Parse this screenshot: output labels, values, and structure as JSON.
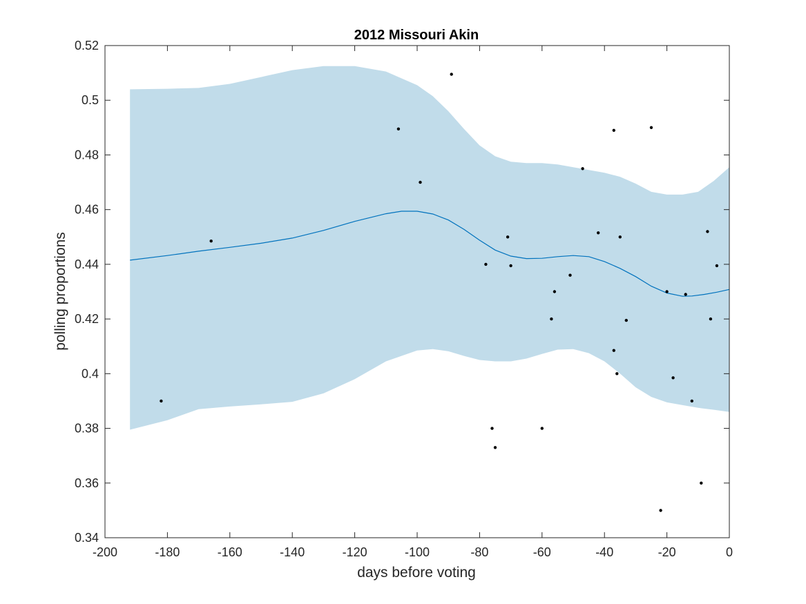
{
  "chart_data": {
    "type": "scatter",
    "title": "2012 Missouri Akin",
    "xlabel": "days before voting",
    "ylabel": "polling proportions",
    "xlim": [
      -200,
      0
    ],
    "ylim": [
      0.34,
      0.52
    ],
    "xticks": [
      -200,
      -180,
      -160,
      -140,
      -120,
      -100,
      -80,
      -60,
      -40,
      -20,
      0
    ],
    "yticks": [
      0.34,
      0.36,
      0.38,
      0.4,
      0.42,
      0.44,
      0.46,
      0.48,
      0.5,
      0.52
    ],
    "ytick_labels": [
      "0.34",
      "0.36",
      "0.38",
      "0.4",
      "0.42",
      "0.44",
      "0.46",
      "0.48",
      "0.5",
      "0.52"
    ],
    "grid": false,
    "colors": {
      "band": "#c1dcea",
      "trend": "#0072bd",
      "points": "#000000",
      "axes": "#262626"
    },
    "band_upper": {
      "x": [
        -192,
        -180,
        -170,
        -160,
        -150,
        -140,
        -130,
        -120,
        -110,
        -100,
        -95,
        -90,
        -85,
        -80,
        -75,
        -70,
        -65,
        -60,
        -55,
        -50,
        -45,
        -40,
        -35,
        -30,
        -25,
        -20,
        -15,
        -10,
        -5,
        0
      ],
      "y": [
        0.504,
        0.5042,
        0.5045,
        0.506,
        0.5085,
        0.511,
        0.5125,
        0.5125,
        0.5105,
        0.5055,
        0.5015,
        0.496,
        0.4895,
        0.4835,
        0.4795,
        0.4775,
        0.477,
        0.477,
        0.4765,
        0.4755,
        0.4745,
        0.4735,
        0.472,
        0.4695,
        0.4665,
        0.4655,
        0.4655,
        0.4665,
        0.4705,
        0.4755
      ]
    },
    "band_lower": {
      "x": [
        -192,
        -180,
        -170,
        -160,
        -150,
        -140,
        -130,
        -120,
        -110,
        -100,
        -95,
        -90,
        -85,
        -80,
        -75,
        -70,
        -65,
        -60,
        -55,
        -50,
        -45,
        -40,
        -35,
        -30,
        -25,
        -20,
        -15,
        -10,
        -5,
        0
      ],
      "y": [
        0.3795,
        0.383,
        0.387,
        0.388,
        0.3888,
        0.3897,
        0.3928,
        0.398,
        0.4045,
        0.4085,
        0.409,
        0.4082,
        0.4065,
        0.405,
        0.4045,
        0.4045,
        0.4055,
        0.4072,
        0.4088,
        0.409,
        0.4075,
        0.4045,
        0.4,
        0.395,
        0.3915,
        0.3895,
        0.3885,
        0.3875,
        0.3868,
        0.386
      ]
    },
    "trend": {
      "x": [
        -192,
        -180,
        -170,
        -160,
        -150,
        -140,
        -130,
        -120,
        -110,
        -105,
        -100,
        -95,
        -90,
        -85,
        -80,
        -75,
        -70,
        -65,
        -60,
        -55,
        -50,
        -45,
        -40,
        -35,
        -30,
        -25,
        -20,
        -15,
        -12,
        -8,
        -4,
        0
      ],
      "y": [
        0.4415,
        0.4432,
        0.4448,
        0.4462,
        0.4477,
        0.4496,
        0.4524,
        0.4557,
        0.4585,
        0.4594,
        0.4594,
        0.4584,
        0.4562,
        0.4528,
        0.4488,
        0.4452,
        0.443,
        0.4421,
        0.4422,
        0.4428,
        0.4432,
        0.4428,
        0.441,
        0.4385,
        0.4355,
        0.432,
        0.4295,
        0.4283,
        0.4284,
        0.429,
        0.4298,
        0.4308
      ]
    },
    "points": [
      [
        -182,
        0.39
      ],
      [
        -166,
        0.4485
      ],
      [
        -106,
        0.4895
      ],
      [
        -99,
        0.47
      ],
      [
        -89,
        0.5095
      ],
      [
        -78,
        0.44
      ],
      [
        -76,
        0.38
      ],
      [
        -75,
        0.373
      ],
      [
        -71,
        0.45
      ],
      [
        -70,
        0.4395
      ],
      [
        -60,
        0.38
      ],
      [
        -57,
        0.42
      ],
      [
        -56,
        0.43
      ],
      [
        -51,
        0.436
      ],
      [
        -47,
        0.475
      ],
      [
        -42,
        0.4515
      ],
      [
        -37,
        0.489
      ],
      [
        -37,
        0.4085
      ],
      [
        -36,
        0.4
      ],
      [
        -35,
        0.45
      ],
      [
        -33,
        0.4195
      ],
      [
        -25,
        0.49
      ],
      [
        -22,
        0.35
      ],
      [
        -20,
        0.43
      ],
      [
        -18,
        0.3985
      ],
      [
        -14,
        0.429
      ],
      [
        -12,
        0.39
      ],
      [
        -9,
        0.36
      ],
      [
        -7,
        0.452
      ],
      [
        -6,
        0.42
      ],
      [
        -4,
        0.4395
      ]
    ]
  }
}
